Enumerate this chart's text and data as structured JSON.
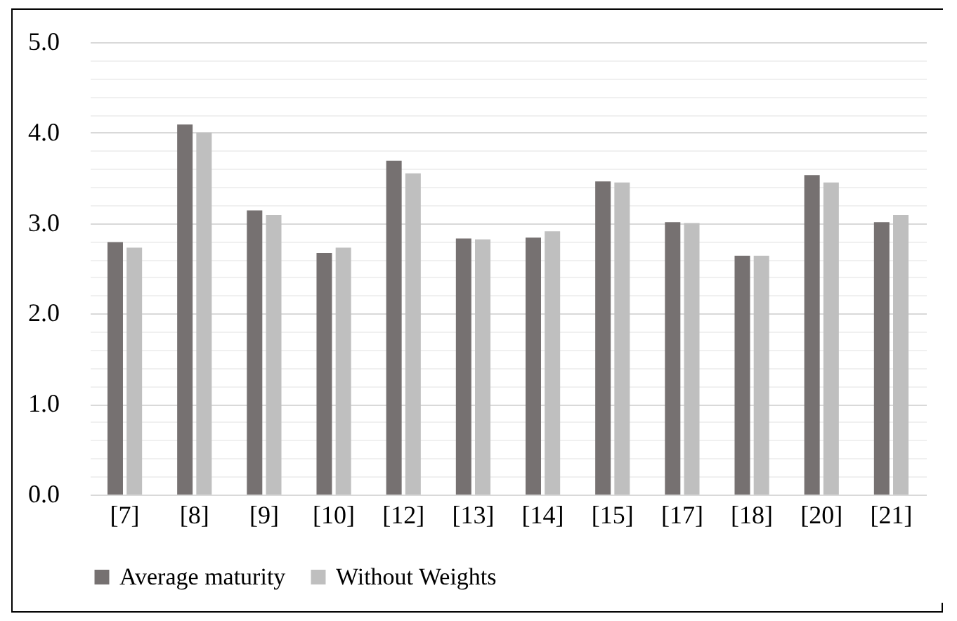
{
  "chart_data": {
    "type": "bar",
    "categories": [
      "[7]",
      "[8]",
      "[9]",
      "[10]",
      "[12]",
      "[13]",
      "[14]",
      "[15]",
      "[17]",
      "[18]",
      "[20]",
      "[21]"
    ],
    "series": [
      {
        "name": "Average maturity",
        "color": "#767171",
        "values": [
          2.79,
          4.09,
          3.14,
          2.67,
          3.69,
          2.83,
          2.84,
          3.46,
          3.01,
          2.64,
          3.53,
          3.01
        ]
      },
      {
        "name": "Without Weights",
        "color": "#bfbfbf",
        "values": [
          2.73,
          4.0,
          3.09,
          2.73,
          3.55,
          2.82,
          2.91,
          3.45,
          3.0,
          2.64,
          3.45,
          3.09
        ]
      }
    ],
    "ylim": [
      0,
      5
    ],
    "yticks": [
      {
        "value": 0,
        "label": "0.0"
      },
      {
        "value": 0.2,
        "label": null
      },
      {
        "value": 0.4,
        "label": null
      },
      {
        "value": 0.6,
        "label": null
      },
      {
        "value": 0.8,
        "label": null
      },
      {
        "value": 1,
        "label": "1.0"
      },
      {
        "value": 1.2,
        "label": null
      },
      {
        "value": 1.4,
        "label": null
      },
      {
        "value": 1.6,
        "label": null
      },
      {
        "value": 1.8,
        "label": null
      },
      {
        "value": 2,
        "label": "2.0"
      },
      {
        "value": 2.2,
        "label": null
      },
      {
        "value": 2.4,
        "label": null
      },
      {
        "value": 2.6,
        "label": null
      },
      {
        "value": 2.8,
        "label": null
      },
      {
        "value": 3,
        "label": "3.0"
      },
      {
        "value": 3.2,
        "label": null
      },
      {
        "value": 3.4,
        "label": null
      },
      {
        "value": 3.6,
        "label": null
      },
      {
        "value": 3.8,
        "label": null
      },
      {
        "value": 4,
        "label": "4.0"
      },
      {
        "value": 4.2,
        "label": null
      },
      {
        "value": 4.4,
        "label": null
      },
      {
        "value": 4.6,
        "label": null
      },
      {
        "value": 4.8,
        "label": null
      },
      {
        "value": 5,
        "label": "5.0"
      }
    ],
    "grid": "y",
    "legend": "bottom"
  }
}
